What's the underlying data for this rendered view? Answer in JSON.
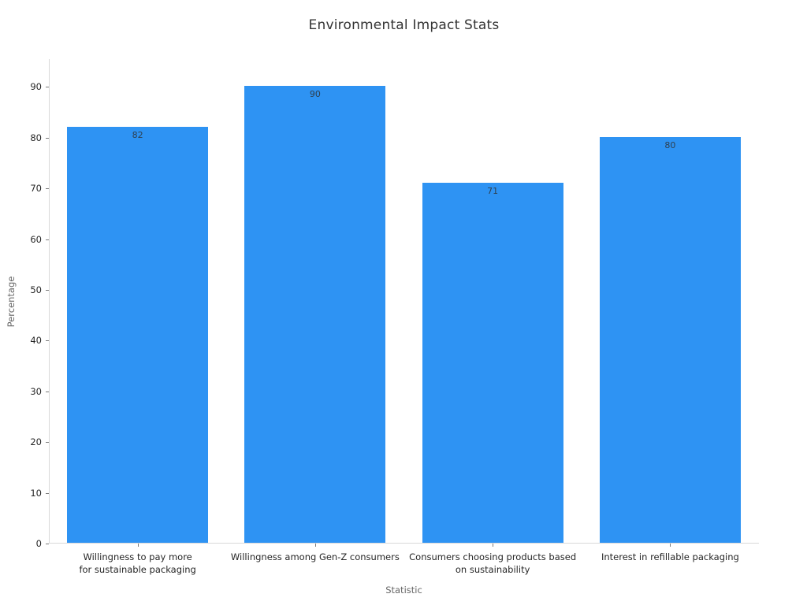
{
  "title": "Environmental Impact Stats",
  "colors": {
    "bar_fill": "#2e93f3",
    "bar_value_text": "#2f4050",
    "title_text": "#333333",
    "tick_text": "#262626",
    "axis_label_text": "#666666",
    "spine": "#d9d9d9",
    "tick_mark": "#7a7a7a",
    "background": "#ffffff"
  },
  "chart_data": {
    "type": "bar",
    "title": "Environmental Impact Stats",
    "xlabel": "Statistic",
    "ylabel": "Percentage",
    "categories": [
      "Willingness to pay more\nfor sustainable packaging",
      "Willingness among Gen-Z consumers",
      "Consumers choosing products based\non sustainability",
      "Interest in refillable packaging"
    ],
    "values": [
      82,
      90,
      71,
      80
    ],
    "value_labels": [
      "82",
      "90",
      "71",
      "80"
    ],
    "yticks": [
      0,
      10,
      20,
      30,
      40,
      50,
      60,
      70,
      80,
      90
    ],
    "ylim": [
      0,
      95.5
    ],
    "grid": false,
    "legend_position": "none",
    "bar_width_fraction": 0.794
  }
}
